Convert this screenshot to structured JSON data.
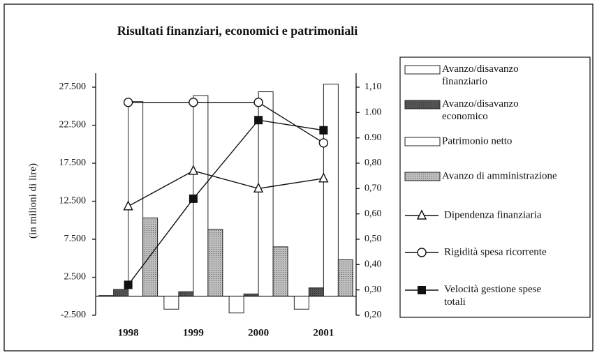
{
  "chart_data": {
    "type": "bar",
    "title": "Risultati finanziari, economici e patrimoniali",
    "y_label": "(in milioni di lire)",
    "categories": [
      "1998",
      "1999",
      "2000",
      "2001"
    ],
    "ylim": [
      -2500,
      27500
    ],
    "yticks": [
      {
        "value": -2500,
        "label": "-2.500"
      },
      {
        "value": 2500,
        "label": "2.500"
      },
      {
        "value": 7500,
        "label": "7.500"
      },
      {
        "value": 12500,
        "label": "12.500"
      },
      {
        "value": 17500,
        "label": "17.500"
      },
      {
        "value": 22500,
        "label": "22.500"
      },
      {
        "value": 27500,
        "label": "27.500"
      }
    ],
    "y2lim": [
      0.2,
      1.1
    ],
    "y2ticks": [
      {
        "value": 1.1,
        "label": "1,10"
      },
      {
        "value": 1.0,
        "label": "1.00"
      },
      {
        "value": 0.9,
        "label": "0.90"
      },
      {
        "value": 0.8,
        "label": "0,80"
      },
      {
        "value": 0.7,
        "label": "0,70"
      },
      {
        "value": 0.6,
        "label": "0,60"
      },
      {
        "value": 0.5,
        "label": "0,50"
      },
      {
        "value": 0.4,
        "label": "0,40"
      },
      {
        "value": 0.3,
        "label": "0,30"
      },
      {
        "value": 0.2,
        "label": "0,20"
      }
    ],
    "series": [
      {
        "name": "Avanzo/disavanzo finanziario",
        "type": "bar",
        "color": "#ffffff",
        "values": [
          100,
          -1700,
          -2200,
          -1700
        ]
      },
      {
        "name": "Avanzo/disavanzo economico",
        "type": "bar",
        "color": "#4a4a4a",
        "values": [
          900,
          600,
          300,
          1100
        ]
      },
      {
        "name": "Patrimonio netto",
        "type": "bar",
        "color": "#ffffff",
        "values": [
          25600,
          26400,
          26900,
          27900
        ]
      },
      {
        "name": "Avanzo di amministrazione",
        "type": "bar",
        "color": "#a8a8a8",
        "values": [
          10300,
          8800,
          6500,
          4800
        ]
      },
      {
        "name": "Dipendenza finanziaria",
        "type": "line",
        "axis": "y2",
        "marker": "triangle",
        "color": "#111111",
        "values": [
          0.63,
          0.77,
          0.7,
          0.74
        ]
      },
      {
        "name": "Rigidità spesa ricorrente",
        "type": "line",
        "axis": "y2",
        "marker": "circle",
        "color": "#111111",
        "values": [
          1.04,
          1.04,
          1.04,
          0.88
        ]
      },
      {
        "name": "Velocità gestione spese totali",
        "type": "line",
        "axis": "y2",
        "marker": "square",
        "color": "#111111",
        "values": [
          0.32,
          0.66,
          0.97,
          0.93
        ]
      }
    ]
  }
}
